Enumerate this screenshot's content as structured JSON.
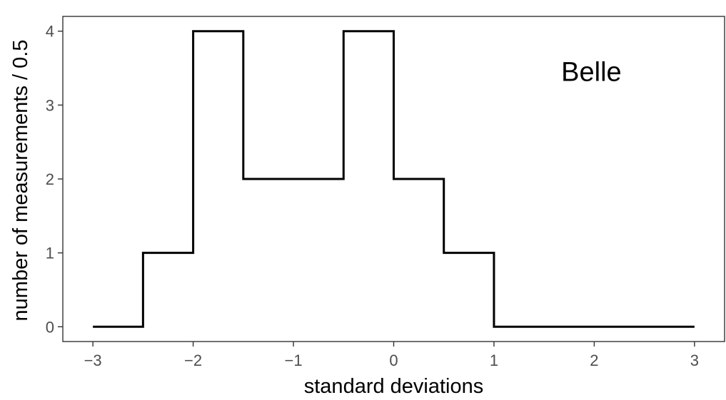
{
  "chart_data": {
    "type": "line",
    "style": "step histogram",
    "x": [
      -3,
      -2.5,
      -2,
      -1.5,
      -1,
      -0.5,
      0,
      0.5,
      1,
      1.5,
      2,
      2.5,
      3
    ],
    "series": [
      {
        "values": [
          0,
          1,
          4,
          2,
          2,
          4,
          2,
          1,
          0,
          0,
          0,
          0,
          0
        ]
      }
    ],
    "xlabel": "standard deviations",
    "ylabel": "number of measurements / 0.5",
    "xticks": [
      -3,
      -2,
      -1,
      0,
      1,
      2,
      3
    ],
    "xtick_labels": [
      "−3",
      "−2",
      "−1",
      "0",
      "1",
      "2",
      "3"
    ],
    "yticks": [
      0,
      1,
      2,
      3,
      4
    ],
    "ytick_labels": [
      "0",
      "1",
      "2",
      "3",
      "4"
    ],
    "xlim": [
      -3.3,
      3.3
    ],
    "ylim": [
      -0.2,
      4.2
    ],
    "annotations": [
      {
        "text": "Belle",
        "x": 2,
        "y": 3.45
      }
    ],
    "grid": false,
    "line_color": "#000000"
  }
}
